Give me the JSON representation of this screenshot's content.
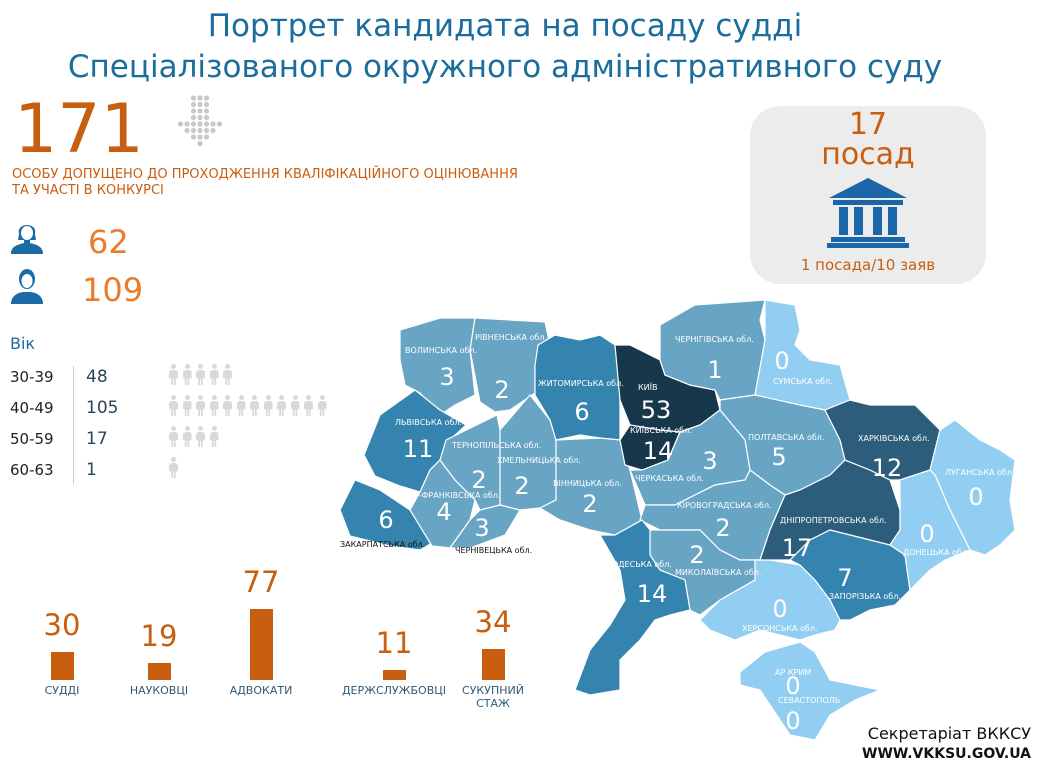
{
  "title": {
    "line1": "Портрет кандидата на посаду судді",
    "line2": "Спеціалізованого окружного адміністративного суду"
  },
  "admitted": {
    "count": "171",
    "text_line1": "ОСОБУ ДОПУЩЕНО ДО ПРОХОДЖЕННЯ КВАЛІФІКАЦІЙНОГО ОЦІНЮВАННЯ",
    "text_line2": "ТА УЧАСТІ В КОНКУРСІ",
    "icon": "dotted-arrow-down-icon"
  },
  "gender": {
    "female": {
      "count": "62",
      "icon": "female-avatar-icon"
    },
    "male": {
      "count": "109",
      "icon": "male-avatar-icon"
    }
  },
  "age": {
    "heading": "Вік",
    "rows": [
      {
        "range": "30-39",
        "count": "48",
        "icon_count": 5
      },
      {
        "range": "40-49",
        "count": "105",
        "icon_count": 12
      },
      {
        "range": "50-59",
        "count": "17",
        "icon_count": 4
      },
      {
        "range": "60-63",
        "count": "1",
        "icon_count": 1
      }
    ]
  },
  "positions": {
    "count": "17",
    "label": "посад",
    "ratio": "1 посада/10 заяв",
    "icon": "courthouse-icon"
  },
  "chart_data": {
    "type": "bar",
    "categories": [
      "СУДДІ",
      "НАУКОВЦІ",
      "АДВОКАТИ",
      "ДЕРЖСЛУЖБОВЦІ",
      "СУКУПНИЙ СТАЖ"
    ],
    "values": [
      30,
      19,
      77,
      11,
      34
    ],
    "value_labels": [
      "30",
      "19",
      "77",
      "11",
      "34"
    ],
    "color": "#c85e10"
  },
  "map": {
    "colors": {
      "zero": "#92cef1",
      "low": "#68a4c4",
      "mid": "#3584b0",
      "high": "#2c5e7b",
      "top": "#17374b"
    },
    "regions": [
      {
        "name": "ВОЛИНСЬКА обл.",
        "value": "3",
        "tier": "low"
      },
      {
        "name": "РІВНЕНСЬКА обл.",
        "value": "2",
        "tier": "low"
      },
      {
        "name": "ЛЬВІВСЬКА обл.",
        "value": "11",
        "tier": "mid"
      },
      {
        "name": "ЗАКАРПАТСЬКА обл.",
        "value": "6",
        "tier": "mid"
      },
      {
        "name": "ІВАНО-ФРАНКІВСЬКА обл.",
        "value": "4",
        "tier": "low"
      },
      {
        "name": "ТЕРНОПІЛЬСЬКА обл.",
        "value": "2",
        "tier": "low"
      },
      {
        "name": "ЧЕРНІВЕЦЬКА обл.",
        "value": "3",
        "tier": "low"
      },
      {
        "name": "ХМЕЛЬНИЦЬКА обл.",
        "value": "2",
        "tier": "low"
      },
      {
        "name": "ЖИТОМИРСЬКА обл.",
        "value": "6",
        "tier": "mid"
      },
      {
        "name": "ВІННИЦЬКА обл.",
        "value": "2",
        "tier": "low"
      },
      {
        "name": "КИЇВ",
        "value": "53",
        "tier": "top"
      },
      {
        "name": "КИЇВСЬКА обл.",
        "value": "14",
        "tier": "top"
      },
      {
        "name": "ЧЕРНІГІВСЬКА обл.",
        "value": "1",
        "tier": "low"
      },
      {
        "name": "СУМСЬКА обл.",
        "value": "0",
        "tier": "zero"
      },
      {
        "name": "ПОЛТАВСЬКА обл.",
        "value": "5",
        "tier": "low"
      },
      {
        "name": "ЧЕРКАСЬКА обл.",
        "value": "3",
        "tier": "low"
      },
      {
        "name": "КІРОВОГРАДСЬКА обл.",
        "value": "2",
        "tier": "low"
      },
      {
        "name": "МИКОЛАЇВСЬКА обл.",
        "value": "2",
        "tier": "low"
      },
      {
        "name": "ОДЕСЬКА обл.",
        "value": "14",
        "tier": "mid"
      },
      {
        "name": "ХЕРСОНСЬКА обл.",
        "value": "0",
        "tier": "zero"
      },
      {
        "name": "АР КРИМ",
        "value": "0",
        "tier": "zero"
      },
      {
        "name": "СЕВАСТОПОЛЬ",
        "value": "0",
        "tier": "zero"
      },
      {
        "name": "ДНІПРОПЕТРОВСЬКА обл.",
        "value": "17",
        "tier": "high"
      },
      {
        "name": "ЗАПОРІЗЬКА обл.",
        "value": "7",
        "tier": "mid"
      },
      {
        "name": "ХАРКІВСЬКА обл.",
        "value": "12",
        "tier": "high"
      },
      {
        "name": "ЛУГАНСЬКА обл.",
        "value": "0",
        "tier": "zero"
      },
      {
        "name": "ДОНЕЦЬКА обл.",
        "value": "0",
        "tier": "zero"
      }
    ]
  },
  "footer": {
    "org": "Секретаріат ВККСУ",
    "url": "WWW.VKKSU.GOV.UA"
  }
}
